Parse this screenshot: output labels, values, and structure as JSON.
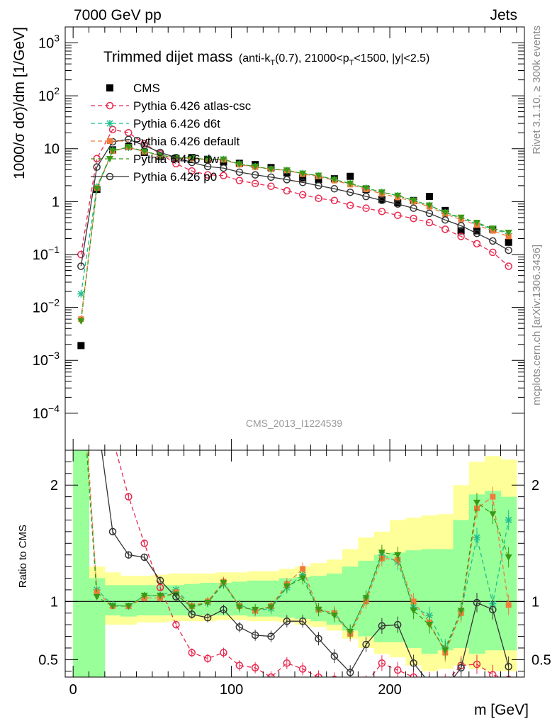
{
  "header": {
    "left": "7000 GeV pp",
    "right": "Jets"
  },
  "side_labels": {
    "rivet": "Rivet 3.1.10, ≥ 300k events",
    "mcplots": "mcplots.cern.ch [arXiv:1306.3436]"
  },
  "watermark": "CMS_2013_I1224539",
  "colors": {
    "cms": "#000000",
    "atlas": "#e8284f",
    "d6t": "#1fbf8f",
    "default": "#f07c3c",
    "dw": "#3a9a14",
    "p0": "#333333",
    "band_yellow": "#ffff99",
    "band_green": "#99ff99"
  },
  "chart_data": {
    "type": "scatter",
    "title": "Trimmed dijet mass",
    "title_detail": "(anti-k_T(0.7), 21000<p_T<1500, |y|<2.5)",
    "title_detail_parts": {
      "a": "(anti-k",
      "b": "T",
      "c": "(0.7), 21000<p",
      "d": "T",
      "e": "<1500, |y|<2.5)"
    },
    "xlabel": "m [GeV]",
    "ylabel": "1000/σ dσ)/dm [1/GeV]",
    "ratio_ylabel": "Ratio to CMS",
    "xlim": [
      -5,
      285
    ],
    "ylim": [
      2e-05,
      2000
    ],
    "yscale": "log",
    "ratio_ylim": [
      0.35,
      2.3
    ],
    "x_ticks": [
      0,
      100,
      200
    ],
    "y_ticks": [
      {
        "v": 1000,
        "base": "10",
        "exp": "3"
      },
      {
        "v": 100,
        "base": "10",
        "exp": "2"
      },
      {
        "v": 10,
        "base": "10",
        "exp": ""
      },
      {
        "v": 1,
        "base": "1",
        "exp": ""
      },
      {
        "v": 0.1,
        "base": "10",
        "exp": "−1"
      },
      {
        "v": 0.01,
        "base": "10",
        "exp": "−2"
      },
      {
        "v": 0.001,
        "base": "10",
        "exp": "−3"
      },
      {
        "v": 0.0001,
        "base": "10",
        "exp": "−4"
      }
    ],
    "ratio_ticks": [
      {
        "v": 0.5,
        "label": "0.5"
      },
      {
        "v": 1,
        "label": "1"
      },
      {
        "v": 2,
        "label": "2"
      }
    ],
    "x": [
      5,
      15,
      25,
      35,
      45,
      55,
      65,
      75,
      85,
      95,
      105,
      115,
      125,
      135,
      145,
      155,
      165,
      175,
      185,
      195,
      205,
      215,
      225,
      235,
      245,
      255,
      265,
      275
    ],
    "bin_edges": [
      0,
      10,
      20,
      30,
      40,
      50,
      60,
      70,
      80,
      90,
      100,
      110,
      120,
      130,
      140,
      150,
      160,
      170,
      180,
      190,
      200,
      210,
      220,
      230,
      240,
      250,
      260,
      270,
      280
    ],
    "series": [
      {
        "key": "cms",
        "name": "CMS",
        "marker": "square",
        "values": [
          0.0019,
          1.7,
          9.5,
          11.0,
          8.5,
          7.2,
          6.5,
          6.8,
          6.3,
          5.6,
          5.3,
          5.0,
          4.4,
          3.5,
          2.8,
          2.6,
          2.7,
          3.0,
          1.7,
          1.1,
          0.95,
          1.05,
          1.25,
          0.68,
          0.28,
          0.28,
          0.3,
          0.17
        ]
      },
      {
        "key": "atlas",
        "name": "Pythia 6.426 atlas-csc",
        "marker": "open-circle",
        "dash": "6,4",
        "values": [
          0.1,
          6.5,
          23.0,
          20.0,
          12.5,
          8.0,
          5.2,
          3.8,
          3.2,
          3.1,
          2.5,
          2.2,
          1.95,
          1.6,
          1.35,
          1.15,
          1.05,
          0.85,
          0.75,
          0.65,
          0.55,
          0.48,
          0.4,
          0.3,
          0.22,
          0.16,
          0.11,
          0.06
        ]
      },
      {
        "key": "d6t",
        "name": "Pythia 6.426 d6t",
        "marker": "star",
        "dash": "6,4",
        "values": [
          0.018,
          1.9,
          9.3,
          10.5,
          8.9,
          7.5,
          6.8,
          6.6,
          6.3,
          6.3,
          5.1,
          4.6,
          4.1,
          3.9,
          3.4,
          3.1,
          2.6,
          2.2,
          1.8,
          1.5,
          1.3,
          1.05,
          0.85,
          0.62,
          0.48,
          0.38,
          0.3,
          0.25
        ]
      },
      {
        "key": "default",
        "name": "Pythia 6.426 default",
        "marker": "filled-square",
        "dash": "6,4",
        "values": [
          0.006,
          1.8,
          9.0,
          10.6,
          8.8,
          7.4,
          6.7,
          6.5,
          6.2,
          6.2,
          5.0,
          4.5,
          4.1,
          3.9,
          3.3,
          3.0,
          2.5,
          2.1,
          1.7,
          1.4,
          1.2,
          1.0,
          0.8,
          0.58,
          0.46,
          0.36,
          0.28,
          0.22
        ]
      },
      {
        "key": "dw",
        "name": "Pythia 6.426 dw",
        "marker": "down-triangle",
        "dash": "6,4",
        "values": [
          0.0055,
          1.75,
          9.1,
          10.8,
          8.9,
          7.5,
          6.8,
          6.6,
          6.3,
          6.3,
          5.1,
          4.6,
          4.1,
          3.9,
          3.4,
          3.1,
          2.6,
          2.2,
          1.8,
          1.5,
          1.3,
          1.05,
          0.85,
          0.62,
          0.5,
          0.4,
          0.31,
          0.26
        ]
      },
      {
        "key": "p0",
        "name": "Pythia 6.426 p0",
        "marker": "open-circle",
        "dash": "",
        "values": [
          0.06,
          4.5,
          13.5,
          15.0,
          11.5,
          8.5,
          6.8,
          5.5,
          4.6,
          4.3,
          3.6,
          3.2,
          2.9,
          2.6,
          2.3,
          2.0,
          1.75,
          1.5,
          1.25,
          1.05,
          0.9,
          0.75,
          0.6,
          0.45,
          0.35,
          0.25,
          0.18,
          0.12
        ]
      }
    ],
    "ratio": {
      "yellow_band": [
        [
          0.35,
          2.3
        ],
        [
          0.75,
          1.3
        ],
        [
          0.8,
          1.25
        ],
        [
          0.8,
          1.22
        ],
        [
          0.82,
          1.22
        ],
        [
          0.82,
          1.23
        ],
        [
          0.83,
          1.24
        ],
        [
          0.83,
          1.24
        ],
        [
          0.83,
          1.24
        ],
        [
          0.84,
          1.25
        ],
        [
          0.84,
          1.25
        ],
        [
          0.83,
          1.26
        ],
        [
          0.83,
          1.26
        ],
        [
          0.82,
          1.28
        ],
        [
          0.8,
          1.3
        ],
        [
          0.78,
          1.33
        ],
        [
          0.75,
          1.36
        ],
        [
          0.68,
          1.45
        ],
        [
          0.6,
          1.55
        ],
        [
          0.55,
          1.6
        ],
        [
          0.52,
          1.7
        ],
        [
          0.45,
          1.72
        ],
        [
          0.4,
          1.74
        ],
        [
          0.42,
          1.75
        ],
        [
          0.45,
          2.0
        ],
        [
          0.42,
          2.2
        ],
        [
          0.4,
          2.25
        ],
        [
          0.4,
          2.22
        ]
      ],
      "green_band": [
        [
          0.35,
          2.3
        ],
        [
          0.35,
          1.2
        ],
        [
          0.88,
          1.14
        ],
        [
          0.87,
          1.14
        ],
        [
          0.88,
          1.14
        ],
        [
          0.88,
          1.14
        ],
        [
          0.88,
          1.14
        ],
        [
          0.88,
          1.15
        ],
        [
          0.88,
          1.16
        ],
        [
          0.88,
          1.16
        ],
        [
          0.88,
          1.17
        ],
        [
          0.87,
          1.18
        ],
        [
          0.87,
          1.18
        ],
        [
          0.86,
          1.2
        ],
        [
          0.85,
          1.21
        ],
        [
          0.83,
          1.22
        ],
        [
          0.8,
          1.24
        ],
        [
          0.75,
          1.3
        ],
        [
          0.7,
          1.35
        ],
        [
          0.65,
          1.4
        ],
        [
          0.65,
          1.42
        ],
        [
          0.6,
          1.44
        ],
        [
          0.55,
          1.45
        ],
        [
          0.58,
          1.45
        ],
        [
          0.6,
          1.7
        ],
        [
          0.55,
          1.92
        ],
        [
          0.58,
          1.95
        ],
        [
          0.58,
          1.9
        ]
      ],
      "series": [
        {
          "key": "atlas",
          "values": [
            null,
            null,
            2.4,
            1.9,
            1.5,
            1.12,
            0.8,
            0.56,
            0.51,
            0.56,
            0.45,
            0.43,
            0.35,
            0.47,
            0.42,
            0.35,
            0.33,
            0.28,
            0.3,
            0.47,
            0.41,
            0.35,
            0.32,
            0.3,
            0.45,
            0.46,
            0.37,
            0.33
          ]
        },
        {
          "key": "d6t",
          "values": [
            3.0,
            1.1,
            0.97,
            0.96,
            1.05,
            1.05,
            1.1,
            0.96,
            0.99,
            1.15,
            0.97,
            0.92,
            0.94,
            1.12,
            1.23,
            0.93,
            0.9,
            0.74,
            1.03,
            1.4,
            1.34,
            0.95,
            0.88,
            0.6,
            0.92,
            1.55,
            0.98,
            1.7
          ]
        },
        {
          "key": "default",
          "values": [
            3.2,
            1.08,
            0.96,
            0.96,
            1.03,
            1.03,
            1.08,
            0.96,
            1.0,
            1.17,
            0.96,
            0.92,
            0.96,
            1.15,
            1.28,
            0.93,
            0.9,
            0.72,
            1.0,
            1.37,
            1.36,
            1.0,
            0.82,
            0.56,
            0.9,
            1.8,
            1.9,
            0.97
          ]
        },
        {
          "key": "dw",
          "values": [
            3.0,
            1.04,
            0.96,
            0.96,
            1.05,
            1.05,
            1.06,
            0.95,
            0.99,
            1.16,
            0.95,
            0.93,
            0.95,
            1.13,
            1.2,
            0.93,
            0.88,
            0.74,
            1.03,
            1.42,
            1.4,
            0.92,
            0.8,
            0.58,
            0.92,
            1.85,
            1.75,
            1.38
          ]
        },
        {
          "key": "p0",
          "values": [
            30.0,
            2.6,
            1.6,
            1.4,
            1.38,
            1.18,
            1.04,
            0.89,
            0.86,
            0.93,
            0.78,
            0.71,
            0.7,
            0.83,
            0.83,
            0.68,
            0.53,
            0.39,
            0.63,
            0.79,
            0.8,
            0.47,
            0.3,
            0.25,
            0.43,
            0.99,
            0.93,
            0.44
          ]
        }
      ]
    }
  }
}
